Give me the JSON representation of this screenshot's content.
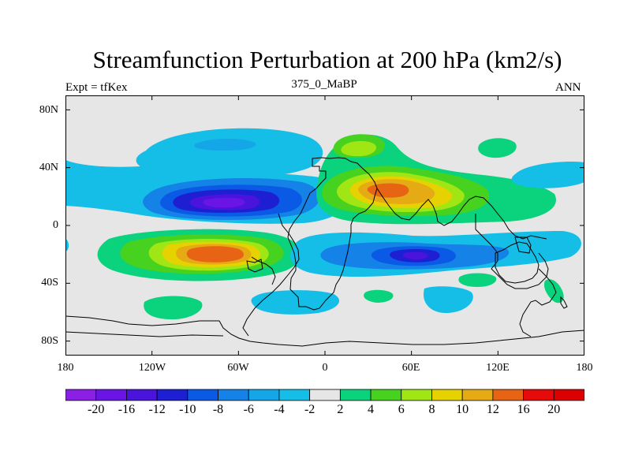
{
  "header": {
    "title": "Streamfunction Perturbation at 200 hPa (km2/s)",
    "left_label": "Expt = tfKex",
    "center_label": "375_0_MaBP",
    "right_label": "ANN"
  },
  "map": {
    "projection": "cylindrical-equidistant",
    "lon_range": [
      -180,
      180
    ],
    "lat_range": [
      -90,
      90
    ],
    "background_color": "#e6e6e6",
    "y_tick_labels": [
      "80N",
      "40N",
      "0",
      "40S",
      "80S"
    ],
    "y_tick_values": [
      80,
      40,
      0,
      -40,
      -80
    ],
    "x_tick_labels": [
      "180",
      "120W",
      "60W",
      "0",
      "60E",
      "120E",
      "180"
    ],
    "x_tick_values": [
      -180,
      -120,
      -60,
      0,
      60,
      120,
      180
    ]
  },
  "colorbar": {
    "labels": [
      "-20",
      "-16",
      "-12",
      "-10",
      "-8",
      "-6",
      "-4",
      "-2",
      "2",
      "4",
      "6",
      "8",
      "10",
      "12",
      "16",
      "20"
    ],
    "colors": [
      "#8c1fe6",
      "#6b14e6",
      "#4a14dc",
      "#1e1ed2",
      "#0a5ae6",
      "#1482e6",
      "#14a6e6",
      "#14bee6",
      "#e6e6e6",
      "#0ad27d",
      "#46d21e",
      "#a0e614",
      "#e6d200",
      "#e6aa14",
      "#e66414",
      "#e60a0a",
      "#dc0000"
    ]
  },
  "anomalies": [
    {
      "name": "north-pacific-ridge-weak",
      "lon": -85,
      "lat": 57,
      "levels": [
        -2,
        -4
      ]
    },
    {
      "name": "north-pacific-trough",
      "lon": -80,
      "lat": 16,
      "levels": [
        -2,
        -4,
        -6,
        -8,
        -10,
        -12,
        -16
      ]
    },
    {
      "name": "south-pacific-high",
      "lon": -72,
      "lat": -18,
      "levels": [
        2,
        4,
        6,
        8,
        10,
        12,
        16
      ]
    },
    {
      "name": "south-pacific-small-high",
      "lon": -120,
      "lat": -57,
      "levels": [
        2
      ]
    },
    {
      "name": "north-africa-high",
      "lon": 45,
      "lat": 22,
      "levels": [
        2,
        4,
        6,
        8,
        10,
        12
      ]
    },
    {
      "name": "eurasia-ridge",
      "lon": 25,
      "lat": 55,
      "levels": [
        2,
        4,
        6
      ]
    },
    {
      "name": "indian-ocean-trough",
      "lon": 65,
      "lat": -20,
      "levels": [
        -2,
        -4,
        -6,
        -8,
        -10,
        -12
      ]
    },
    {
      "name": "north-pacific-west-trough",
      "lon": 160,
      "lat": 35,
      "levels": [
        -2
      ]
    },
    {
      "name": "siberia-high",
      "lon": 115,
      "lat": 52,
      "levels": [
        2
      ]
    },
    {
      "name": "southern-ocean-trough",
      "lon": -30,
      "lat": -52,
      "levels": [
        -2
      ]
    },
    {
      "name": "australia-high",
      "lon": 105,
      "lat": -38,
      "levels": [
        2
      ]
    },
    {
      "name": "south-atlantic-high",
      "lon": 37,
      "lat": -50,
      "levels": [
        2
      ]
    }
  ]
}
